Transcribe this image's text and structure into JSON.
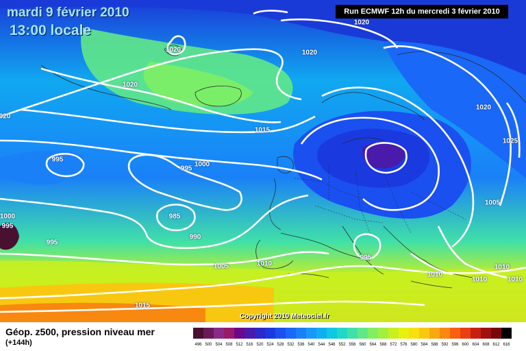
{
  "title": {
    "date": "mardi 9 février 2010",
    "time": "13:00 locale"
  },
  "run_info": "Run ECMWF 12h du mercredi 3 février 2010",
  "copyright": "Copyright 2010 Meteociel.fr",
  "legend": {
    "title": "Géop. z500, pression niveau mer",
    "subtitle": "(+144h)",
    "ticks": [
      "496",
      "500",
      "504",
      "508",
      "512",
      "516",
      "520",
      "524",
      "528",
      "532",
      "536",
      "540",
      "544",
      "548",
      "552",
      "556",
      "560",
      "564",
      "568",
      "572",
      "576",
      "580",
      "584",
      "588",
      "592",
      "596",
      "600",
      "604",
      "608",
      "612",
      "616"
    ],
    "colors": [
      "#4a1030",
      "#6a1a5a",
      "#8a2a8a",
      "#9a1a6a",
      "#6a0a8a",
      "#4a1aaa",
      "#2a2ac8",
      "#1a3ae0",
      "#1a50f0",
      "#1a68f8",
      "#1a80f8",
      "#1a98f8",
      "#10b0f0",
      "#10c8e0",
      "#20d8c8",
      "#40e0a8",
      "#60e888",
      "#80f060",
      "#a0f040",
      "#c8f020",
      "#e8f010",
      "#f8e010",
      "#f8c810",
      "#f8a810",
      "#f88810",
      "#f86010",
      "#e84010",
      "#c82010",
      "#a01010",
      "#780808",
      "#000000"
    ]
  },
  "isobar_labels": [
    "1020",
    "1020",
    "1020",
    "1020",
    "020",
    "1015",
    "995",
    "995",
    "1000",
    "985",
    "990",
    "1000",
    "995",
    "995",
    "1005",
    "1010",
    "995",
    "1020",
    "1025",
    "1005",
    "1010",
    "1010",
    "1010",
    "1010",
    "1015"
  ],
  "icons": {
    "colorbar": "color-scale-bar"
  }
}
